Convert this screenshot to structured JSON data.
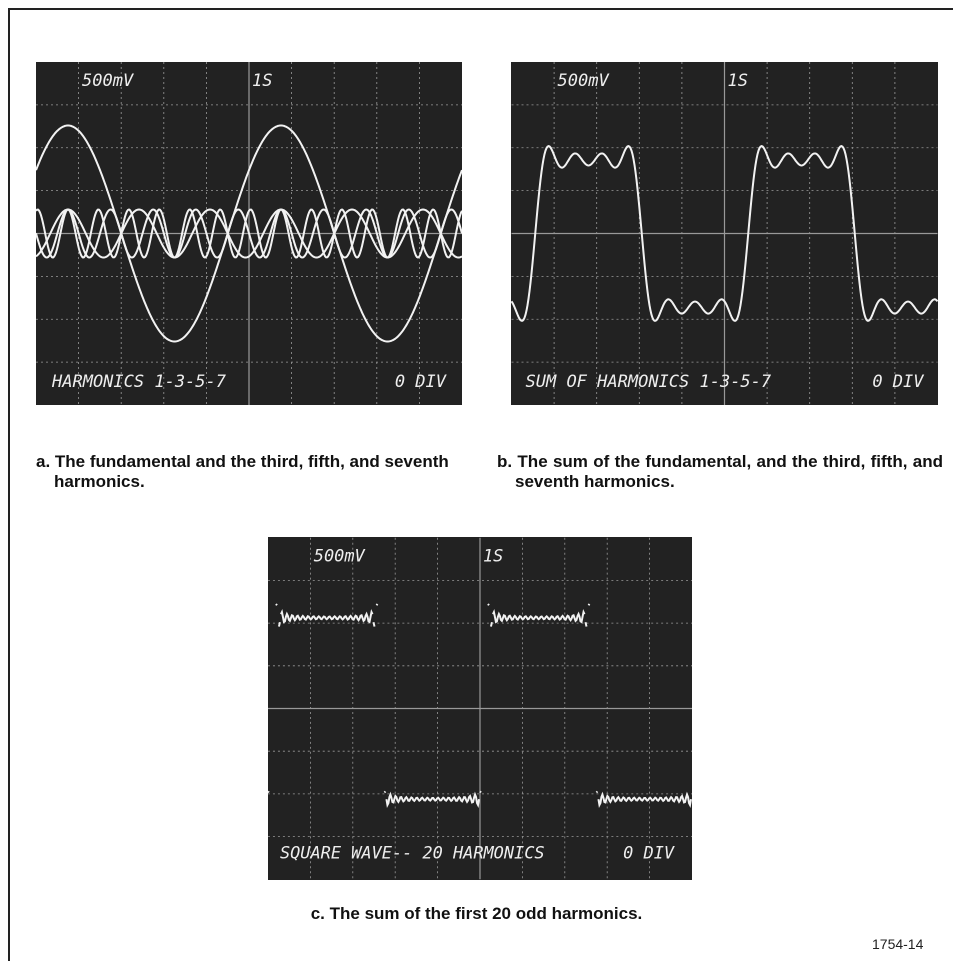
{
  "panels": [
    {
      "screen": {
        "scale": "500mV",
        "time": "1S",
        "label": "HARMONICS 1-3-5-7",
        "offset": "0 DIV"
      },
      "caption": "a. The fundamental and the third, fifth, and seventh harmonics."
    },
    {
      "screen": {
        "scale": "500mV",
        "time": "1S",
        "label": "SUM OF HARMONICS 1-3-5-7",
        "offset": "0 DIV"
      },
      "caption": "b. The sum of the fundamental, and the third, fifth, and seventh harmonics."
    },
    {
      "screen": {
        "scale": "500mV",
        "time": "1S",
        "label": "SQUARE WAVE-- 20 HARMONICS",
        "offset": "0 DIV"
      },
      "caption": "c. The sum of the first 20 odd harmonics."
    }
  ],
  "figure_number": "1754-14"
}
